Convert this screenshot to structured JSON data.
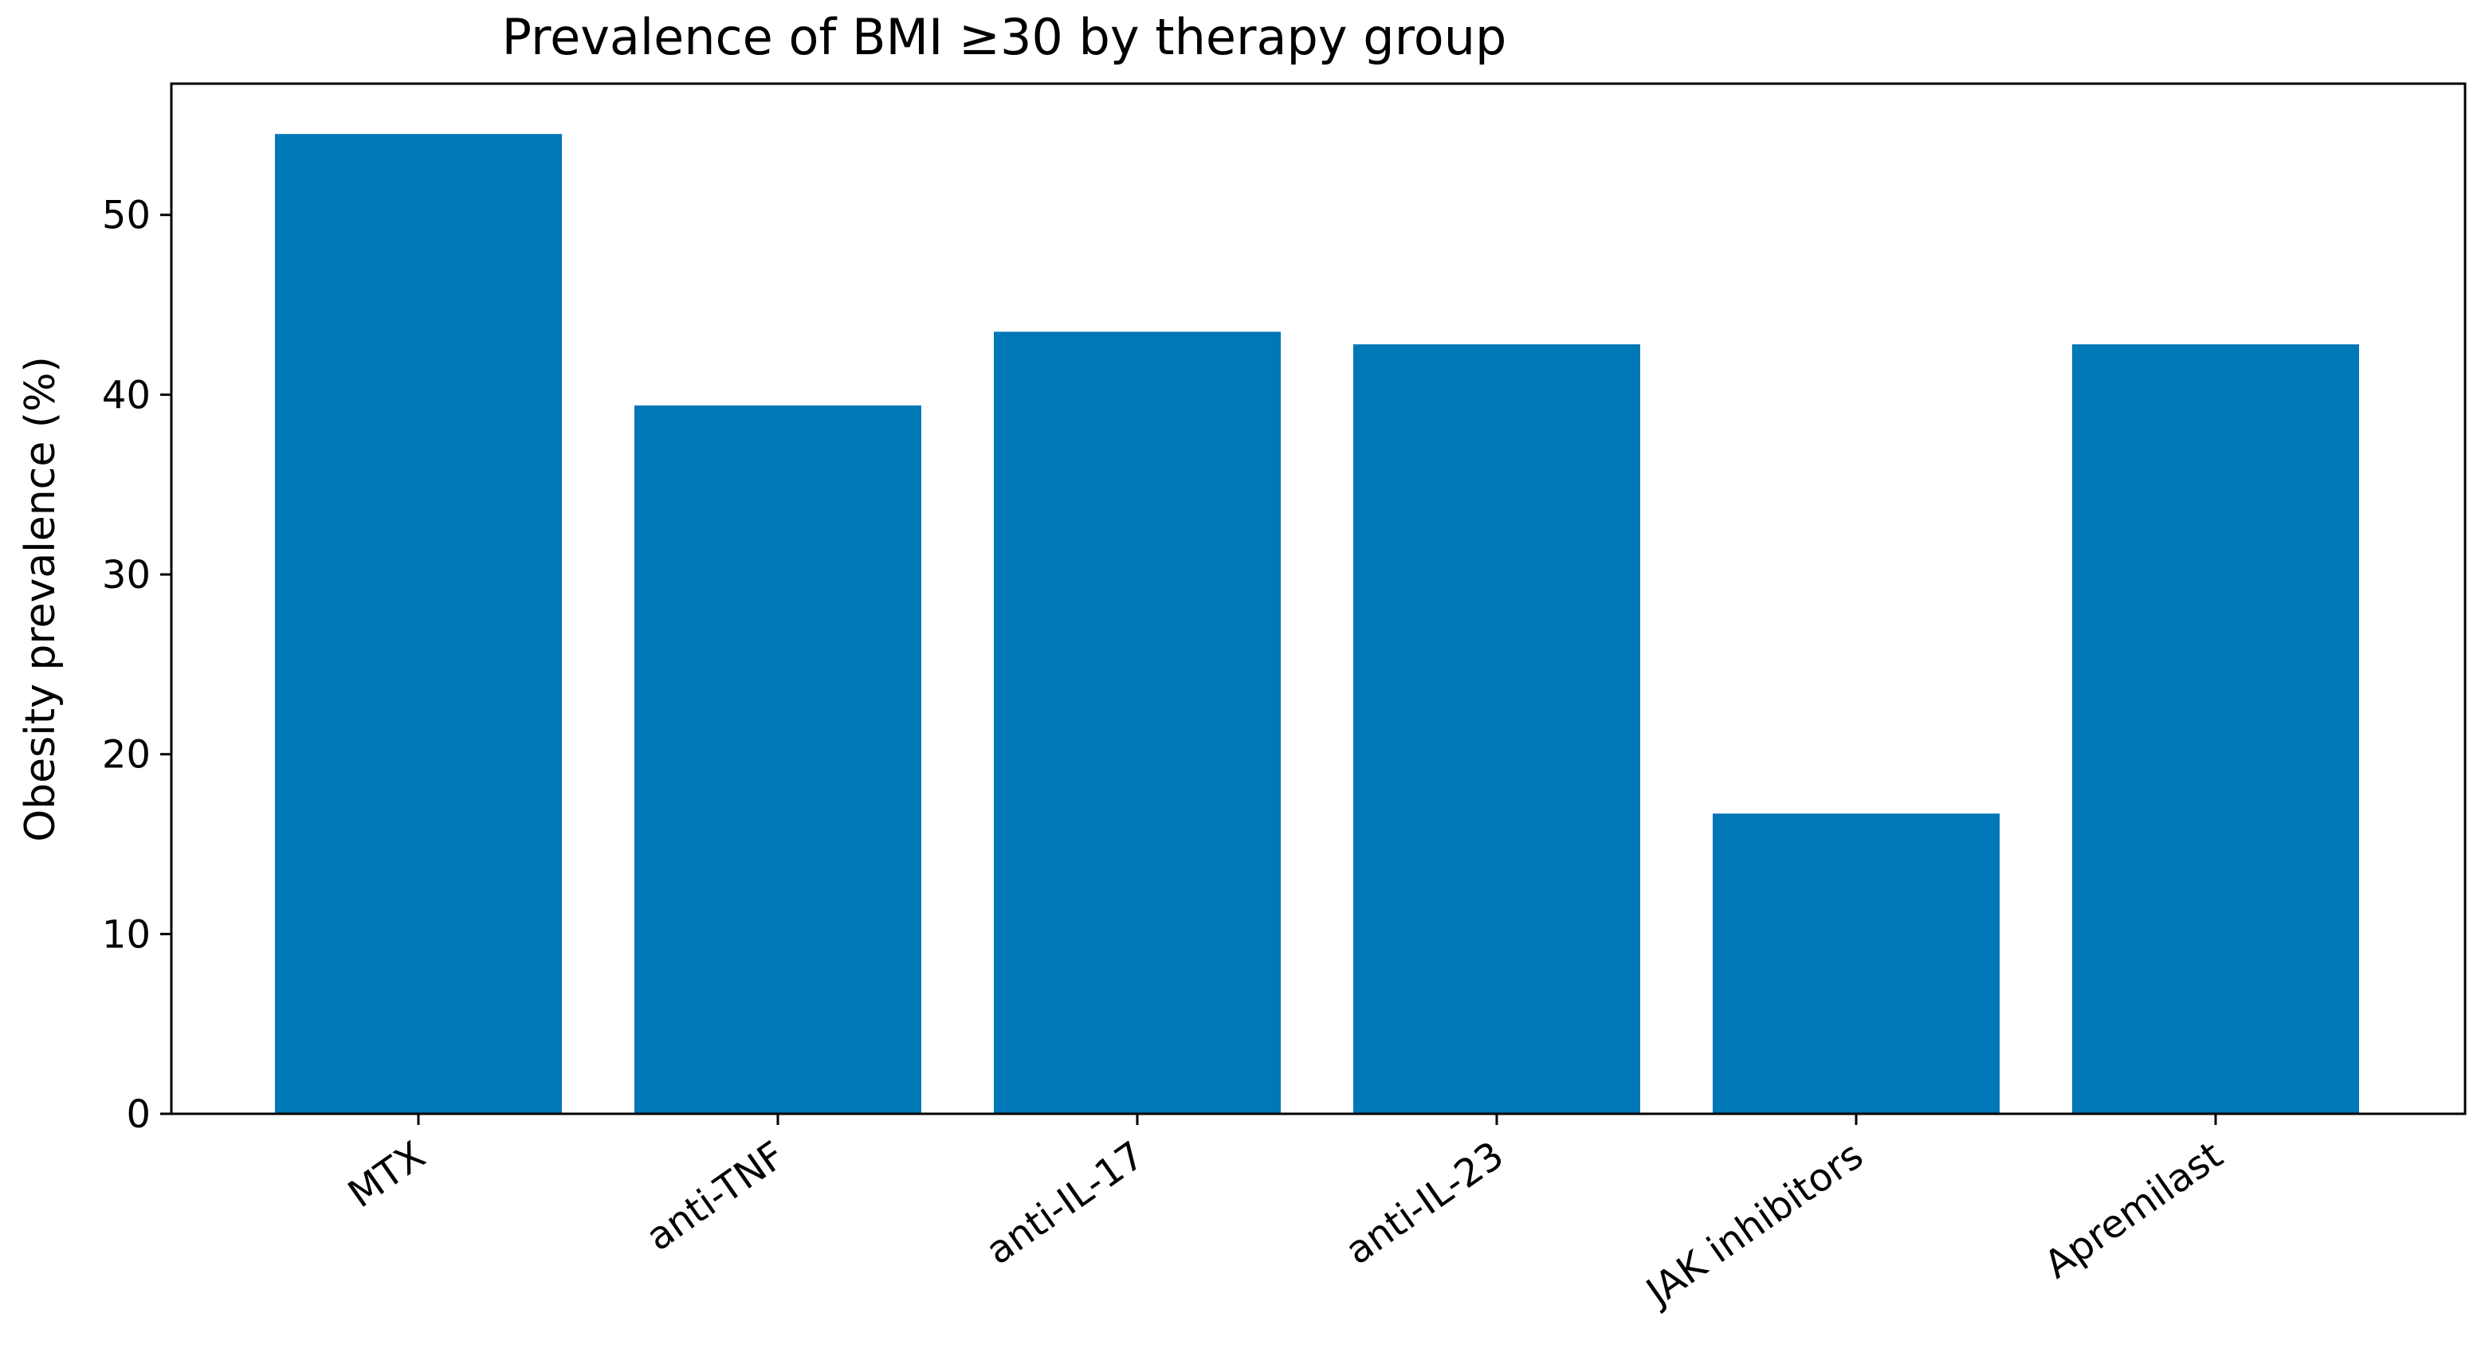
{
  "chart_data": {
    "type": "bar",
    "title": "Prevalence of BMI ≥30 by therapy group",
    "xlabel": "",
    "ylabel": "Obesity prevalence (%)",
    "categories": [
      "MTX",
      "anti-TNF",
      "anti-IL-17",
      "anti-IL-23",
      "JAK inhibitors",
      "Apremilast"
    ],
    "values": [
      54.5,
      39.4,
      43.5,
      42.8,
      16.7,
      42.8
    ],
    "ylim": [
      0,
      57.3
    ],
    "yticks": [
      0,
      10,
      20,
      30,
      40,
      50
    ],
    "bar_color": "#0077b6",
    "grid": false,
    "legend": "none"
  }
}
